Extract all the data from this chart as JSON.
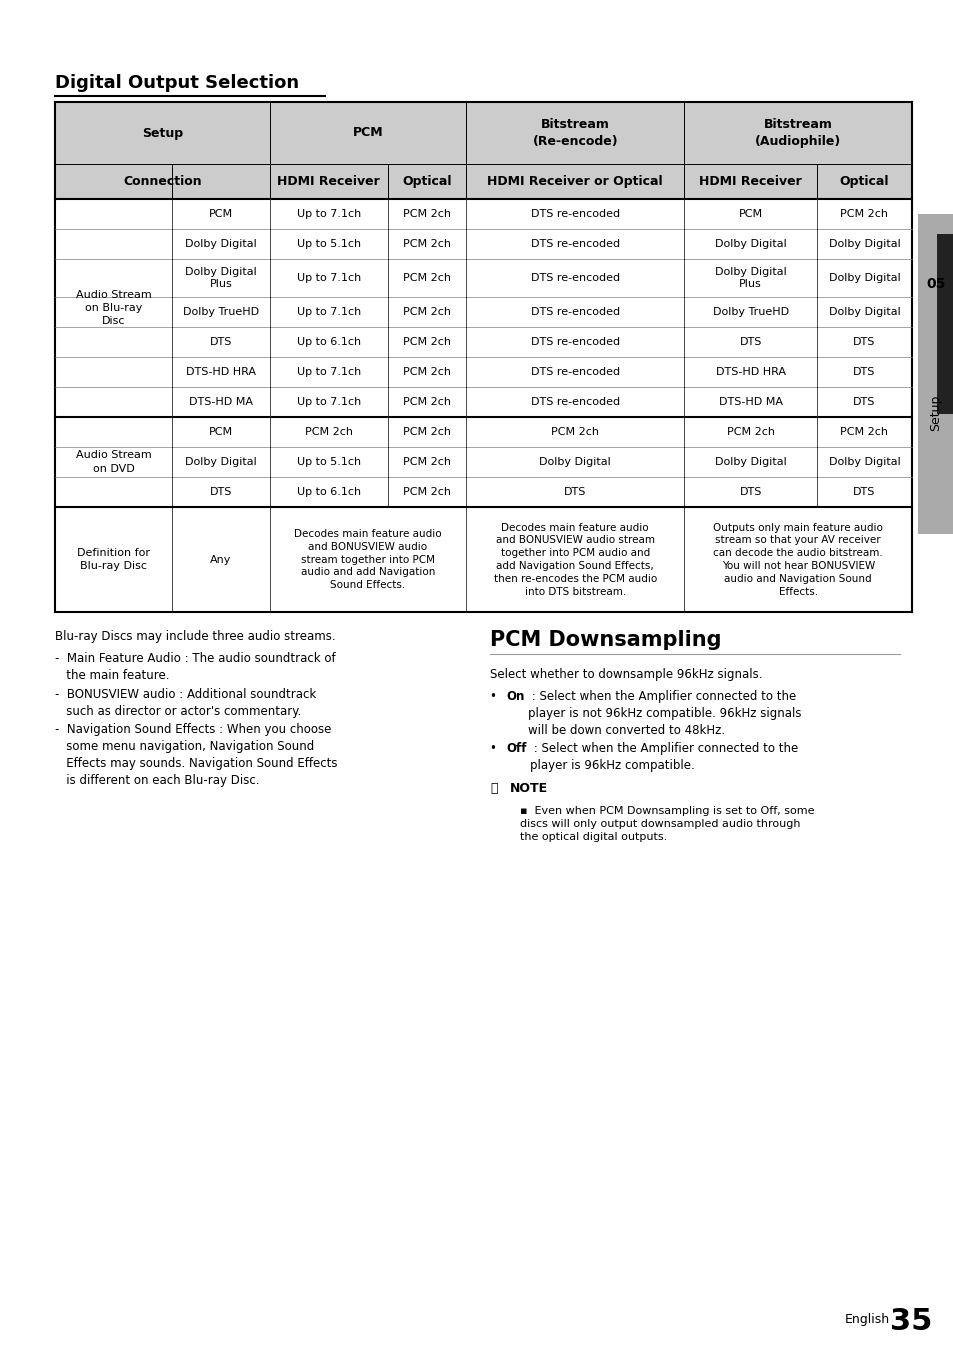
{
  "bg_color": "#ffffff",
  "header_bg": "#cccccc",
  "section_title": "Digital Output Selection",
  "section2_title": "PCM Downsampling",
  "page_num": "35",
  "sidebar_num": "05",
  "sidebar_label": "Setup",
  "bluray_rows": [
    [
      "PCM",
      "Up to 7.1ch",
      "PCM 2ch",
      "DTS re-encoded",
      "PCM",
      "PCM 2ch"
    ],
    [
      "Dolby Digital",
      "Up to 5.1ch",
      "PCM 2ch",
      "DTS re-encoded",
      "Dolby Digital",
      "Dolby Digital"
    ],
    [
      "Dolby Digital\nPlus",
      "Up to 7.1ch",
      "PCM 2ch",
      "DTS re-encoded",
      "Dolby Digital\nPlus",
      "Dolby Digital"
    ],
    [
      "Dolby TrueHD",
      "Up to 7.1ch",
      "PCM 2ch",
      "DTS re-encoded",
      "Dolby TrueHD",
      "Dolby Digital"
    ],
    [
      "DTS",
      "Up to 6.1ch",
      "PCM 2ch",
      "DTS re-encoded",
      "DTS",
      "DTS"
    ],
    [
      "DTS-HD HRA",
      "Up to 7.1ch",
      "PCM 2ch",
      "DTS re-encoded",
      "DTS-HD HRA",
      "DTS"
    ],
    [
      "DTS-HD MA",
      "Up to 7.1ch",
      "PCM 2ch",
      "DTS re-encoded",
      "DTS-HD MA",
      "DTS"
    ]
  ],
  "dvd_rows": [
    [
      "PCM",
      "PCM 2ch",
      "PCM 2ch",
      "PCM 2ch",
      "PCM 2ch",
      "PCM 2ch"
    ],
    [
      "Dolby Digital",
      "Up to 5.1ch",
      "PCM 2ch",
      "Dolby Digital",
      "Dolby Digital",
      "Dolby Digital"
    ],
    [
      "DTS",
      "Up to 6.1ch",
      "PCM 2ch",
      "DTS",
      "DTS",
      "DTS"
    ]
  ],
  "def_pcm_text": "Decodes main feature audio\nand BONUSVIEW audio\nstream together into PCM\naudio and add Navigation\nSound Effects.",
  "def_reencode_text": "Decodes main feature audio\nand BONUSVIEW audio stream\ntogether into PCM audio and\nadd Navigation Sound Effects,\nthen re-encodes the PCM audio\ninto DTS bitstream.",
  "def_audiophile_text": "Outputs only main feature audio\nstream so that your AV receiver\ncan decode the audio bitstream.\nYou will not hear BONUSVIEW\naudio and Navigation Sound\nEffects.",
  "left_para0": "Blu-ray Discs may include three audio streams.",
  "left_items": [
    "-  Main Feature Audio : The audio soundtrack of\n   the main feature.",
    "-  BONUSVIEW audio : Additional soundtrack\n   such as director or actor's commentary.",
    "-  Navigation Sound Effects : When you choose\n   some menu navigation, Navigation Sound\n   Effects may sounds. Navigation Sound Effects\n   is different on each Blu-ray Disc."
  ],
  "right_intro": "Select whether to downsample 96kHz signals.",
  "right_on_bold": "On",
  "right_on_rest": " : Select when the Amplifier connected to the\nplayer is not 96kHz compatible. 96kHz signals\nwill be down converted to 48kHz.",
  "right_off_bold": "Off",
  "right_off_rest": " : Select when the Amplifier connected to the\nplayer is 96kHz compatible.",
  "note_label": "NOTE",
  "note_text": "Even when PCM Downsampling is set to Off, some\ndiscs will only output downsampled audio through\nthe optical digital outputs."
}
